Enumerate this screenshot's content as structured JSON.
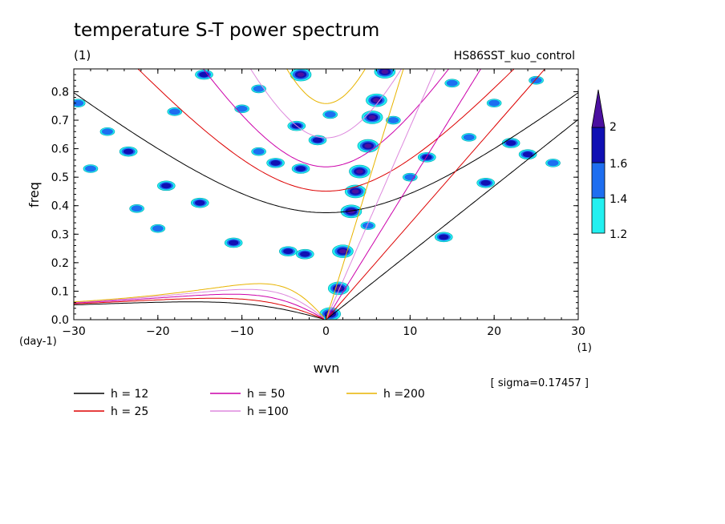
{
  "chart_data": {
    "type": "contour",
    "title": "temperature S-T power spectrum",
    "subtitle_left": "(1)",
    "subtitle_right": "HS86SST_kuo_control",
    "xlabel": "wvn",
    "ylabel": "freq",
    "x_unit": "(1)",
    "y_unit": "(day-1)",
    "xlim": [
      -30,
      30
    ],
    "ylim": [
      0,
      0.88
    ],
    "x_ticks": [
      -30,
      -20,
      -10,
      0,
      10,
      20,
      30
    ],
    "x_tick_labels": [
      "-30",
      "-20",
      "-10",
      "0",
      "10",
      "20",
      "30"
    ],
    "y_ticks": [
      0,
      0.1,
      0.2,
      0.3,
      0.4,
      0.5,
      0.6,
      0.7,
      0.8
    ],
    "y_tick_labels": [
      "0.0",
      "0.1",
      "0.2",
      "0.3",
      "0.4",
      "0.5",
      "0.6",
      "0.7",
      "0.8"
    ],
    "sigma_text": "[ sigma=0.17457 ]",
    "colorbar": {
      "levels": [
        1.2,
        1.4,
        1.6,
        2
      ],
      "labels": [
        "1.2",
        "1.4",
        "1.6",
        "2"
      ],
      "colors": [
        "#22f0f0",
        "#1e6ef0",
        "#1010b4",
        "#4b10a0"
      ]
    },
    "dispersion_curves": [
      {
        "label": "h = 12",
        "h": 12,
        "color": "#000000"
      },
      {
        "label": "h = 25",
        "h": 25,
        "color": "#dd0000"
      },
      {
        "label": "h = 50",
        "h": 50,
        "color": "#cc00aa"
      },
      {
        "label": "h =100",
        "h": 100,
        "color": "#dd88dd"
      },
      {
        "label": "h =200",
        "h": 200,
        "color": "#e8b400"
      }
    ],
    "spectral_blobs": [
      {
        "x": 0.5,
        "y": 0.02,
        "level": 3
      },
      {
        "x": 1.5,
        "y": 0.11,
        "level": 3
      },
      {
        "x": 2.0,
        "y": 0.24,
        "level": 3
      },
      {
        "x": 3.0,
        "y": 0.38,
        "level": 3
      },
      {
        "x": 3.5,
        "y": 0.45,
        "level": 3
      },
      {
        "x": 4.0,
        "y": 0.52,
        "level": 3
      },
      {
        "x": 5.0,
        "y": 0.61,
        "level": 3
      },
      {
        "x": 5.5,
        "y": 0.71,
        "level": 3
      },
      {
        "x": 6.0,
        "y": 0.77,
        "level": 3
      },
      {
        "x": 7.0,
        "y": 0.87,
        "level": 3
      },
      {
        "x": -3.0,
        "y": 0.86,
        "level": 3
      },
      {
        "x": -23.5,
        "y": 0.59,
        "level": 2
      },
      {
        "x": -19.0,
        "y": 0.47,
        "level": 2
      },
      {
        "x": -15.0,
        "y": 0.41,
        "level": 2
      },
      {
        "x": -11.0,
        "y": 0.27,
        "level": 2
      },
      {
        "x": -2.5,
        "y": 0.23,
        "level": 2
      },
      {
        "x": -4.5,
        "y": 0.24,
        "level": 2
      },
      {
        "x": -1.0,
        "y": 0.63,
        "level": 2
      },
      {
        "x": -3.0,
        "y": 0.53,
        "level": 2
      },
      {
        "x": -6.0,
        "y": 0.55,
        "level": 2
      },
      {
        "x": -3.5,
        "y": 0.68,
        "level": 2
      },
      {
        "x": -14.5,
        "y": 0.86,
        "level": 2
      },
      {
        "x": 12.0,
        "y": 0.57,
        "level": 2
      },
      {
        "x": 14.0,
        "y": 0.29,
        "level": 2
      },
      {
        "x": 24.0,
        "y": 0.58,
        "level": 2
      },
      {
        "x": 22.0,
        "y": 0.62,
        "level": 2
      },
      {
        "x": 19.0,
        "y": 0.48,
        "level": 2
      },
      {
        "x": 0.5,
        "y": 0.72,
        "level": 1
      },
      {
        "x": -8.0,
        "y": 0.59,
        "level": 1
      },
      {
        "x": -26.0,
        "y": 0.66,
        "level": 1
      },
      {
        "x": -18.0,
        "y": 0.73,
        "level": 1
      },
      {
        "x": -10.0,
        "y": 0.74,
        "level": 1
      },
      {
        "x": -22.5,
        "y": 0.39,
        "level": 1
      },
      {
        "x": -29.5,
        "y": 0.76,
        "level": 1
      },
      {
        "x": -28.0,
        "y": 0.53,
        "level": 1
      },
      {
        "x": -8.0,
        "y": 0.81,
        "level": 1
      },
      {
        "x": 10.0,
        "y": 0.5,
        "level": 1
      },
      {
        "x": 15.0,
        "y": 0.83,
        "level": 1
      },
      {
        "x": 25.0,
        "y": 0.84,
        "level": 1
      },
      {
        "x": 27.0,
        "y": 0.55,
        "level": 1
      },
      {
        "x": 17.0,
        "y": 0.64,
        "level": 1
      },
      {
        "x": 8.0,
        "y": 0.7,
        "level": 1
      },
      {
        "x": 5.0,
        "y": 0.33,
        "level": 1
      },
      {
        "x": -20.0,
        "y": 0.32,
        "level": 1
      },
      {
        "x": 20.0,
        "y": 0.76,
        "level": 1
      }
    ]
  }
}
